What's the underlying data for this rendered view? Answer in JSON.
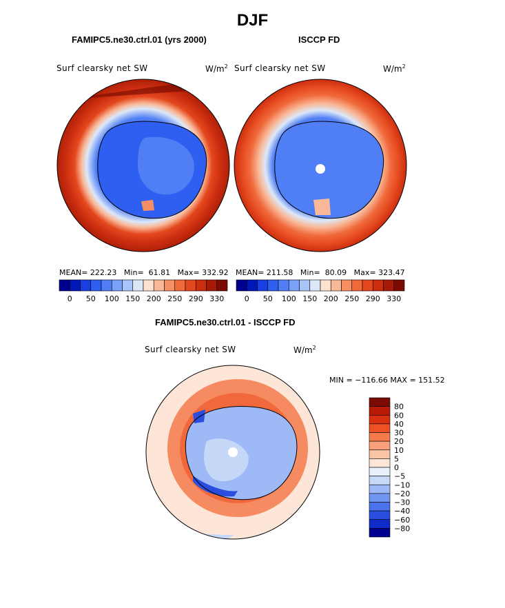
{
  "chart_data": {
    "title": "DJF",
    "panels": [
      {
        "type": "heatmap",
        "projection": "south polar stereographic",
        "title": "FAMIPC5.ne30.ctrl.01 (yrs 2000)",
        "variable": "Surf clearsky net SW",
        "units_base": "W/m",
        "units_exp": "2",
        "stats": {
          "mean_label": "MEAN=",
          "mean": "222.23",
          "min_label": "Min=",
          "min": "61.81",
          "max_label": "Max=",
          "max": "332.92"
        },
        "colorbar_ticks": [
          "0",
          "50",
          "100",
          "150",
          "200",
          "250",
          "290",
          "330"
        ]
      },
      {
        "type": "heatmap",
        "projection": "south polar stereographic",
        "title": "ISCCP FD",
        "variable": "Surf clearsky net SW",
        "units_base": "W/m",
        "units_exp": "2",
        "stats": {
          "mean_label": "MEAN=",
          "mean": "211.58",
          "min_label": "Min=",
          "min": "80.09",
          "max_label": "Max=",
          "max": "323.47"
        },
        "colorbar_ticks": [
          "0",
          "50",
          "100",
          "150",
          "200",
          "250",
          "290",
          "330"
        ]
      },
      {
        "type": "heatmap",
        "projection": "south polar stereographic",
        "title": "FAMIPC5.ne30.ctrl.01 - ISCCP FD",
        "variable": "Surf clearsky net SW",
        "units_base": "W/m",
        "units_exp": "2",
        "minmax": {
          "min_label": "MIN =",
          "min": "−116.66",
          "max_label": "MAX =",
          "max": "151.52"
        },
        "colorbar_ticks": [
          "80",
          "60",
          "40",
          "30",
          "20",
          "10",
          "5",
          "0",
          "−5",
          "−10",
          "−20",
          "−30",
          "−40",
          "−60",
          "−80"
        ]
      }
    ],
    "abs_colors": [
      "#000090",
      "#0018b8",
      "#1a3fe0",
      "#2f5ff0",
      "#4f7ef5",
      "#7aa0f7",
      "#a8c4f8",
      "#dce8f8",
      "#fde2d0",
      "#f9b898",
      "#f78f64",
      "#f06a3c",
      "#e4481e",
      "#cc2e10",
      "#a81a08",
      "#7a0a02"
    ],
    "diff_colors": [
      "#7a0a02",
      "#b81a08",
      "#d83010",
      "#ee5224",
      "#f47a4c",
      "#f8a07c",
      "#fac4a6",
      "#fde6d8",
      "#e8f0fc",
      "#c6d8f8",
      "#9ebaf6",
      "#7196f2",
      "#4b72ec",
      "#2a4ee0",
      "#0f2cc8",
      "#000090"
    ]
  }
}
